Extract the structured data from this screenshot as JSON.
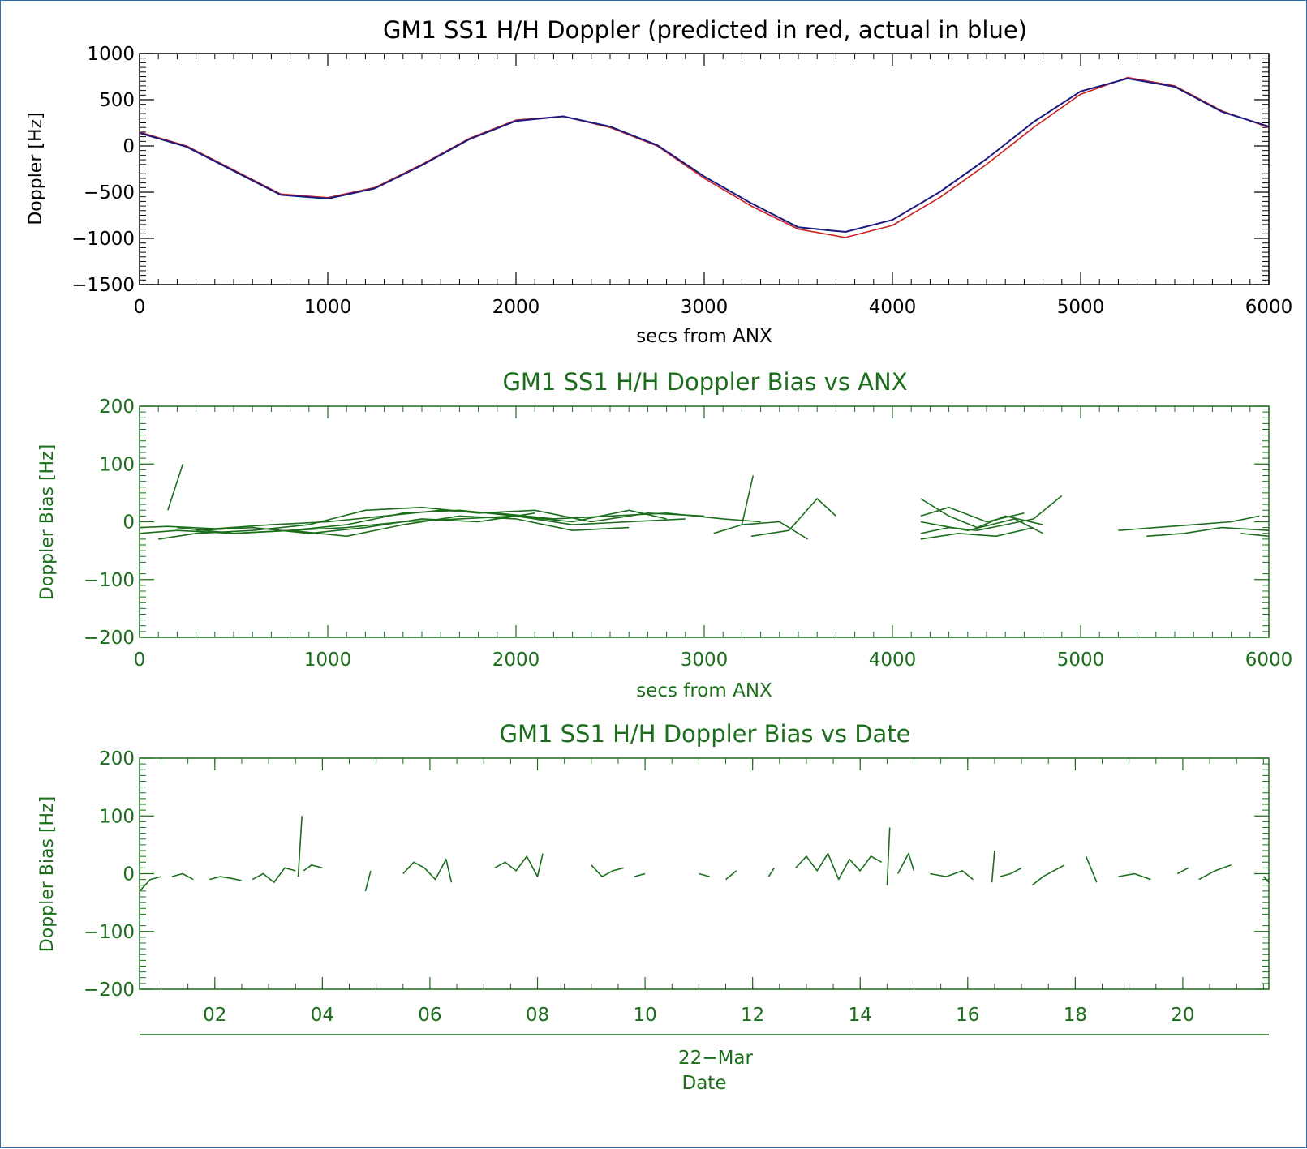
{
  "colors": {
    "black": "#000000",
    "predicted": "#cc2222",
    "actual": "#1a1a80",
    "green": "#1b6e1b"
  },
  "chart_data": [
    {
      "id": "p1",
      "type": "line",
      "title": "GM1 SS1 H/H Doppler (predicted in red, actual in blue)",
      "xlabel": "secs from ANX",
      "ylabel": "Doppler [Hz]",
      "xlim": [
        0,
        6000
      ],
      "ylim": [
        -1500,
        1000
      ],
      "xticks": [
        "0",
        "1000",
        "2000",
        "3000",
        "4000",
        "5000",
        "6000"
      ],
      "yticks": [
        "1000",
        "500",
        "0",
        "−500",
        "−1000",
        "−1500"
      ],
      "series": [
        {
          "color": "#cc2222",
          "x": [
            0,
            250,
            500,
            750,
            1000,
            1250,
            1500,
            1750,
            2000,
            2250,
            2500,
            2750,
            3000,
            3250,
            3500,
            3750,
            4000,
            4250,
            4500,
            4750,
            5000,
            5250,
            5500,
            5750,
            6000
          ],
          "y": [
            150,
            0,
            -260,
            -520,
            -560,
            -450,
            -200,
            80,
            280,
            320,
            200,
            0,
            -350,
            -650,
            -900,
            -990,
            -860,
            -560,
            -200,
            200,
            560,
            740,
            650,
            380,
            200
          ]
        },
        {
          "color": "#1a1a80",
          "x": [
            0,
            250,
            500,
            750,
            1000,
            1250,
            1500,
            1750,
            2000,
            2250,
            2500,
            2750,
            3000,
            3250,
            3500,
            3750,
            4000,
            4250,
            4500,
            4750,
            5000,
            5250,
            5500,
            5750,
            6000
          ],
          "y": [
            140,
            -10,
            -270,
            -530,
            -570,
            -460,
            -210,
            70,
            270,
            320,
            210,
            10,
            -330,
            -620,
            -880,
            -930,
            -800,
            -500,
            -140,
            260,
            590,
            730,
            640,
            370,
            210
          ]
        }
      ]
    },
    {
      "id": "p2",
      "type": "line",
      "title": "GM1 SS1 H/H Doppler Bias vs ANX",
      "xlabel": "secs from ANX",
      "ylabel": "Doppler Bias [Hz]",
      "xlim": [
        0,
        6000
      ],
      "ylim": [
        -200,
        200
      ],
      "xticks": [
        "0",
        "1000",
        "2000",
        "3000",
        "4000",
        "5000",
        "6000"
      ],
      "yticks": [
        "200",
        "100",
        "0",
        "−100",
        "−200"
      ],
      "segments": [
        {
          "x": [
            0,
            150,
            400,
            700,
            1000,
            1300,
            1600,
            1900,
            2200,
            2500,
            2800,
            3100,
            3300
          ],
          "y": [
            -10,
            -8,
            -12,
            -5,
            0,
            10,
            20,
            15,
            5,
            10,
            15,
            5,
            0
          ]
        },
        {
          "x": [
            0,
            200,
            500,
            800,
            1100,
            1400,
            1700,
            2000,
            2300,
            2600,
            2900
          ],
          "y": [
            -20,
            -15,
            -20,
            -15,
            -10,
            0,
            5,
            10,
            -5,
            0,
            5
          ]
        },
        {
          "x": [
            100,
            300,
            600,
            900,
            1200,
            1500,
            1800,
            2100,
            2400,
            2700,
            3000
          ],
          "y": [
            -30,
            -20,
            -15,
            -5,
            20,
            25,
            15,
            20,
            0,
            15,
            10
          ]
        },
        {
          "x": [
            200,
            500,
            800,
            1100,
            1400,
            1700,
            2000,
            2300,
            2600
          ],
          "y": [
            -10,
            -20,
            -15,
            -25,
            -5,
            10,
            5,
            -15,
            -10
          ]
        },
        {
          "x": [
            300,
            600,
            900,
            1200,
            1500,
            1800,
            2100
          ],
          "y": [
            -15,
            -10,
            -20,
            -10,
            5,
            0,
            15
          ]
        },
        {
          "x": [
            800,
            1100,
            1400,
            1700,
            2000,
            2300,
            2600,
            2800
          ],
          "y": [
            -15,
            -5,
            15,
            20,
            10,
            0,
            20,
            5
          ]
        },
        {
          "x": [
            150,
            230
          ],
          "y": [
            20,
            100
          ]
        },
        {
          "x": [
            3200,
            3260
          ],
          "y": [
            -5,
            80
          ]
        },
        {
          "x": [
            3050,
            3200,
            3400,
            3550
          ],
          "y": [
            -20,
            -5,
            0,
            -30
          ]
        },
        {
          "x": [
            3250,
            3450,
            3600,
            3700
          ],
          "y": [
            -25,
            -15,
            40,
            10
          ]
        },
        {
          "x": [
            4150,
            4300,
            4450,
            4600,
            4750,
            4900
          ],
          "y": [
            -20,
            -10,
            -15,
            -5,
            5,
            45
          ]
        },
        {
          "x": [
            4150,
            4300,
            4450,
            4600,
            4800
          ],
          "y": [
            40,
            10,
            -10,
            10,
            -5
          ]
        },
        {
          "x": [
            4150,
            4350,
            4550,
            4750
          ],
          "y": [
            -30,
            -20,
            -25,
            -10
          ]
        },
        {
          "x": [
            4150,
            4300,
            4500,
            4700
          ],
          "y": [
            10,
            25,
            0,
            15
          ]
        },
        {
          "x": [
            4150,
            4400,
            4650,
            4800
          ],
          "y": [
            0,
            -15,
            5,
            -20
          ]
        },
        {
          "x": [
            5200,
            5400,
            5600,
            5800,
            5950
          ],
          "y": [
            -15,
            -10,
            -5,
            0,
            10
          ]
        },
        {
          "x": [
            5350,
            5550,
            5750,
            6000
          ],
          "y": [
            -25,
            -20,
            -10,
            -15
          ]
        },
        {
          "x": [
            5850,
            6000
          ],
          "y": [
            -20,
            -25
          ]
        }
      ]
    },
    {
      "id": "p3",
      "type": "line",
      "title": "GM1 SS1 H/H Doppler Bias vs Date",
      "xlabel": "Date",
      "xlabel2": "22−Mar",
      "ylabel": "Doppler Bias [Hz]",
      "xlim": [
        0.6,
        21.6
      ],
      "ylim": [
        -200,
        200
      ],
      "xtick_values": [
        2,
        4,
        6,
        8,
        10,
        12,
        14,
        16,
        18,
        20
      ],
      "xticks": [
        "02",
        "04",
        "06",
        "08",
        "10",
        "12",
        "14",
        "16",
        "18",
        "20"
      ],
      "yticks": [
        "200",
        "100",
        "0",
        "−100",
        "−200"
      ],
      "segments": [
        {
          "x": [
            0.6,
            0.8,
            1.0
          ],
          "y": [
            -30,
            -10,
            -5
          ]
        },
        {
          "x": [
            1.2,
            1.4,
            1.6
          ],
          "y": [
            -5,
            0,
            -10
          ]
        },
        {
          "x": [
            1.9,
            2.1,
            2.3,
            2.5
          ],
          "y": [
            -10,
            -5,
            -8,
            -12
          ]
        },
        {
          "x": [
            2.7,
            2.9,
            3.1,
            3.3,
            3.5
          ],
          "y": [
            -10,
            0,
            -15,
            10,
            5
          ]
        },
        {
          "x": [
            3.55,
            3.62
          ],
          "y": [
            -5,
            100
          ]
        },
        {
          "x": [
            3.65,
            3.8,
            4.0
          ],
          "y": [
            5,
            15,
            10
          ]
        },
        {
          "x": [
            4.8,
            4.9
          ],
          "y": [
            -30,
            5
          ]
        },
        {
          "x": [
            5.5,
            5.7,
            5.9,
            6.1,
            6.3,
            6.4
          ],
          "y": [
            0,
            20,
            10,
            -10,
            25,
            -15
          ]
        },
        {
          "x": [
            7.2,
            7.4,
            7.6,
            7.8,
            8.0,
            8.1
          ],
          "y": [
            10,
            20,
            5,
            30,
            -5,
            35
          ]
        },
        {
          "x": [
            9.0,
            9.2,
            9.4,
            9.6
          ],
          "y": [
            15,
            -5,
            5,
            10
          ]
        },
        {
          "x": [
            9.8,
            10.0
          ],
          "y": [
            -5,
            0
          ]
        },
        {
          "x": [
            11.0,
            11.2
          ],
          "y": [
            0,
            -5
          ]
        },
        {
          "x": [
            11.5,
            11.7
          ],
          "y": [
            -10,
            5
          ]
        },
        {
          "x": [
            12.3,
            12.4
          ],
          "y": [
            -5,
            10
          ]
        },
        {
          "x": [
            12.8,
            13.0,
            13.2,
            13.4,
            13.6,
            13.8,
            14.0,
            14.2,
            14.4
          ],
          "y": [
            10,
            30,
            5,
            35,
            -10,
            25,
            5,
            30,
            20
          ]
        },
        {
          "x": [
            14.5,
            14.55
          ],
          "y": [
            -20,
            80
          ]
        },
        {
          "x": [
            14.7,
            14.9,
            15.0
          ],
          "y": [
            0,
            35,
            5
          ]
        },
        {
          "x": [
            15.3,
            15.6,
            15.9,
            16.1
          ],
          "y": [
            0,
            -5,
            5,
            -10
          ]
        },
        {
          "x": [
            16.45,
            16.5
          ],
          "y": [
            -15,
            40
          ]
        },
        {
          "x": [
            16.6,
            16.8,
            17.0
          ],
          "y": [
            -5,
            0,
            10
          ]
        },
        {
          "x": [
            17.2,
            17.4,
            17.6,
            17.8
          ],
          "y": [
            -20,
            -5,
            5,
            15
          ]
        },
        {
          "x": [
            18.2,
            18.4
          ],
          "y": [
            30,
            -15
          ]
        },
        {
          "x": [
            18.8,
            19.1,
            19.4
          ],
          "y": [
            -5,
            0,
            -10
          ]
        },
        {
          "x": [
            19.9,
            20.1
          ],
          "y": [
            0,
            10
          ]
        },
        {
          "x": [
            20.3,
            20.6,
            20.9
          ],
          "y": [
            -10,
            5,
            15
          ]
        },
        {
          "x": [
            21.5,
            21.6
          ],
          "y": [
            -5,
            -15
          ]
        }
      ]
    }
  ]
}
